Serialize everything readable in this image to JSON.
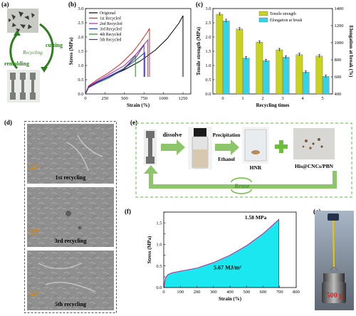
{
  "panels": {
    "a": {
      "label": "(a)",
      "cutting": "cutting",
      "recycling": "Recycling",
      "remolding": "remolding",
      "colors": {
        "cut": "#2e7d1f",
        "recycle_text": "#3d8f2a"
      }
    },
    "b": {
      "label": "(b)"
    },
    "c": {
      "label": "(c)"
    },
    "d": {
      "label": "(d)",
      "images": [
        {
          "scale": "2 μm",
          "caption": "1st recycling"
        },
        {
          "scale": "2 μm",
          "caption": "3rd recycling"
        },
        {
          "scale": "2 μm",
          "caption": "5th recycling"
        }
      ]
    },
    "e": {
      "label": "(e)",
      "dissolve": "dissolve",
      "precipitation": "Precipitation",
      "ethanol": "Ethanol",
      "hnr": "HNR",
      "product": "His@CNCs/PBN",
      "reuse": "Reuse",
      "colors": {
        "arrow": "#8dc56b",
        "border": "#9ccf7f",
        "plus": "#6bbf3a"
      }
    },
    "f": {
      "label": "(f)",
      "peak": "1.58 MPa",
      "energy": "5.67 MJ/m²"
    },
    "g": {
      "label": "(g)",
      "weight": "500 g",
      "colors": {
        "weight_text": "#e0201b"
      }
    }
  },
  "chart_data": [
    {
      "id": "b",
      "type": "line",
      "xlabel": "Strain (%)",
      "ylabel": "Stress (MPa)",
      "xlim": [
        0,
        1350
      ],
      "ylim": [
        0,
        3.0
      ],
      "xticks": [
        0,
        250,
        500,
        750,
        1000,
        1250
      ],
      "yticks": [
        0,
        0.5,
        1.0,
        1.5,
        2.0,
        2.5,
        3.0
      ],
      "ytick_labels": [
        "0.0",
        "0.5",
        "1.0",
        "1.5",
        "2.0",
        "2.5",
        "3.0"
      ],
      "legend_position": "top-left",
      "series": [
        {
          "name": "Origional",
          "color": "#000000",
          "x": [
            0,
            40,
            150,
            300,
            500,
            700,
            900,
            1050,
            1200,
            1250,
            1250
          ],
          "y": [
            0,
            0.25,
            0.42,
            0.6,
            0.85,
            1.15,
            1.55,
            1.95,
            2.5,
            2.75,
            0.6
          ]
        },
        {
          "name": "1st Recycled",
          "color": "#e0201b",
          "x": [
            0,
            40,
            150,
            300,
            450,
            600,
            700,
            800,
            820,
            820
          ],
          "y": [
            0,
            0.28,
            0.5,
            0.75,
            1.05,
            1.45,
            1.8,
            2.2,
            2.3,
            0.6
          ]
        },
        {
          "name": "2nd Recycled",
          "color": "#b020b0",
          "x": [
            0,
            40,
            150,
            300,
            500,
            650,
            800,
            800
          ],
          "y": [
            0,
            0.26,
            0.45,
            0.68,
            1.0,
            1.4,
            1.9,
            0.6
          ]
        },
        {
          "name": "3rd Recycled",
          "color": "#1a3fd6",
          "x": [
            0,
            40,
            150,
            300,
            500,
            650,
            760,
            760
          ],
          "y": [
            0,
            0.24,
            0.42,
            0.62,
            0.9,
            1.2,
            1.45,
            0.6
          ]
        },
        {
          "name": "4th Recycled",
          "color": "#1f8f1f",
          "x": [
            0,
            40,
            150,
            300,
            450,
            550,
            640,
            640
          ],
          "y": [
            0,
            0.22,
            0.38,
            0.56,
            0.8,
            1.05,
            1.35,
            0.6
          ]
        },
        {
          "name": "5th Recycled",
          "color": "#4a2fa6",
          "x": [
            0,
            40,
            150,
            300,
            500,
            650,
            750,
            750
          ],
          "y": [
            0,
            0.23,
            0.4,
            0.6,
            0.88,
            1.3,
            1.72,
            0.6
          ]
        }
      ]
    },
    {
      "id": "c",
      "type": "bar",
      "xlabel": "Recycling times",
      "ylabel": "Tensile strength (MPa)",
      "y2label": "Elongation at break (%)",
      "categories": [
        "0",
        "1",
        "2",
        "3",
        "4",
        "5"
      ],
      "ylim": [
        0,
        3.0
      ],
      "y2lim": [
        400,
        1400
      ],
      "yticks": [
        0,
        0.5,
        1.0,
        1.5,
        2.0,
        2.5,
        3.0
      ],
      "ytick_labels": [
        "0.0",
        "0.5",
        "1.0",
        "1.5",
        "2.0",
        "2.5",
        "3.0"
      ],
      "y2ticks": [
        400,
        600,
        800,
        1000,
        1200,
        1400
      ],
      "legend_position": "top-right",
      "series": [
        {
          "name": "Tensile strength",
          "axis": "left",
          "color": "#c9d21f",
          "values": [
            2.8,
            2.28,
            1.82,
            1.55,
            1.38,
            1.33
          ],
          "err": [
            0.05,
            0.05,
            0.05,
            0.05,
            0.05,
            0.05
          ]
        },
        {
          "name": "Elongation at break",
          "axis": "right",
          "color": "#34d3e8",
          "values": [
            1255,
            820,
            790,
            830,
            655,
            605
          ],
          "err": [
            20,
            18,
            15,
            18,
            15,
            15
          ]
        }
      ]
    },
    {
      "id": "f",
      "type": "area",
      "xlabel": "Strain (%)",
      "ylabel": "Stress (MPa)",
      "xlim": [
        0,
        800
      ],
      "ylim": [
        0,
        1.75
      ],
      "xticks": [
        0,
        100,
        200,
        300,
        400,
        500,
        600,
        700,
        800
      ],
      "yticks": [
        0,
        0.25,
        0.5,
        0.75,
        1.0,
        1.25,
        1.5,
        1.75
      ],
      "ytick_labels": [
        "0.0",
        "",
        "0.5",
        "",
        "1.0",
        "",
        "1.5",
        ""
      ],
      "fill_color": "#19e8f0",
      "line_color": "#c4208c",
      "series": [
        {
          "name": "",
          "x": [
            0,
            10,
            25,
            50,
            100,
            200,
            300,
            400,
            500,
            600,
            650,
            695,
            695
          ],
          "y": [
            0,
            0.22,
            0.3,
            0.34,
            0.38,
            0.45,
            0.58,
            0.75,
            0.97,
            1.25,
            1.42,
            1.58,
            0
          ]
        }
      ]
    }
  ]
}
